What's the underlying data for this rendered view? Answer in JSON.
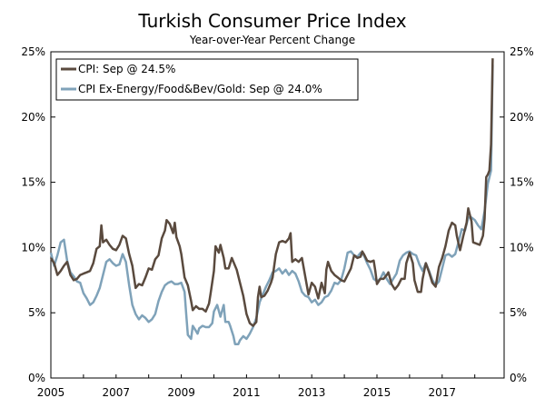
{
  "chart_data": {
    "type": "line",
    "title": "Turkish Consumer Price Index",
    "subtitle": "Year-over-Year Percent Change",
    "xlabel": "",
    "ylabel": "",
    "xlim": [
      2005.0,
      2018.9
    ],
    "ylim": [
      0,
      25
    ],
    "y_ticks": [
      "0%",
      "5%",
      "10%",
      "15%",
      "20%",
      "25%"
    ],
    "x_ticks": [
      "2005",
      "2007",
      "2009",
      "2011",
      "2013",
      "2015",
      "2017"
    ],
    "legend_position": "top-left",
    "series": [
      {
        "name": "CPI: Sep @ 24.5%",
        "color": "#5a4a3e",
        "points": [
          [
            2005.0,
            9.2
          ],
          [
            2005.1,
            8.8
          ],
          [
            2005.2,
            7.9
          ],
          [
            2005.3,
            8.2
          ],
          [
            2005.4,
            8.6
          ],
          [
            2005.5,
            8.9
          ],
          [
            2005.6,
            7.9
          ],
          [
            2005.7,
            7.5
          ],
          [
            2005.8,
            7.6
          ],
          [
            2005.9,
            7.9
          ],
          [
            2006.0,
            8.0
          ],
          [
            2006.1,
            8.1
          ],
          [
            2006.2,
            8.2
          ],
          [
            2006.3,
            8.8
          ],
          [
            2006.4,
            9.9
          ],
          [
            2006.5,
            10.1
          ],
          [
            2006.55,
            11.7
          ],
          [
            2006.6,
            10.4
          ],
          [
            2006.7,
            10.6
          ],
          [
            2006.8,
            10.2
          ],
          [
            2006.9,
            9.9
          ],
          [
            2007.0,
            9.8
          ],
          [
            2007.1,
            10.2
          ],
          [
            2007.2,
            10.9
          ],
          [
            2007.3,
            10.7
          ],
          [
            2007.4,
            9.5
          ],
          [
            2007.5,
            8.6
          ],
          [
            2007.6,
            6.9
          ],
          [
            2007.7,
            7.2
          ],
          [
            2007.8,
            7.1
          ],
          [
            2007.9,
            7.7
          ],
          [
            2008.0,
            8.4
          ],
          [
            2008.1,
            8.3
          ],
          [
            2008.2,
            9.1
          ],
          [
            2008.3,
            9.4
          ],
          [
            2008.4,
            10.7
          ],
          [
            2008.5,
            11.3
          ],
          [
            2008.55,
            12.1
          ],
          [
            2008.65,
            11.8
          ],
          [
            2008.75,
            11.1
          ],
          [
            2008.8,
            11.9
          ],
          [
            2008.85,
            10.8
          ],
          [
            2008.95,
            10.1
          ],
          [
            2009.0,
            9.5
          ],
          [
            2009.1,
            7.7
          ],
          [
            2009.2,
            7.1
          ],
          [
            2009.3,
            5.9
          ],
          [
            2009.35,
            5.2
          ],
          [
            2009.45,
            5.5
          ],
          [
            2009.55,
            5.3
          ],
          [
            2009.65,
            5.3
          ],
          [
            2009.75,
            5.1
          ],
          [
            2009.85,
            5.7
          ],
          [
            2009.9,
            6.5
          ],
          [
            2010.0,
            8.2
          ],
          [
            2010.05,
            10.1
          ],
          [
            2010.15,
            9.6
          ],
          [
            2010.2,
            10.2
          ],
          [
            2010.3,
            9.2
          ],
          [
            2010.35,
            8.4
          ],
          [
            2010.45,
            8.4
          ],
          [
            2010.55,
            9.2
          ],
          [
            2010.6,
            8.9
          ],
          [
            2010.7,
            8.3
          ],
          [
            2010.8,
            7.3
          ],
          [
            2010.9,
            6.3
          ],
          [
            2011.0,
            4.9
          ],
          [
            2011.1,
            4.2
          ],
          [
            2011.2,
            4.0
          ],
          [
            2011.3,
            4.3
          ],
          [
            2011.35,
            6.2
          ],
          [
            2011.4,
            7.0
          ],
          [
            2011.45,
            6.2
          ],
          [
            2011.55,
            6.3
          ],
          [
            2011.65,
            6.7
          ],
          [
            2011.75,
            7.3
          ],
          [
            2011.8,
            7.7
          ],
          [
            2011.9,
            9.5
          ],
          [
            2012.0,
            10.4
          ],
          [
            2012.1,
            10.5
          ],
          [
            2012.2,
            10.4
          ],
          [
            2012.3,
            10.7
          ],
          [
            2012.35,
            11.1
          ],
          [
            2012.4,
            8.9
          ],
          [
            2012.5,
            9.1
          ],
          [
            2012.6,
            8.9
          ],
          [
            2012.7,
            9.2
          ],
          [
            2012.8,
            7.8
          ],
          [
            2012.9,
            6.4
          ],
          [
            2013.0,
            7.3
          ],
          [
            2013.1,
            7.0
          ],
          [
            2013.2,
            6.1
          ],
          [
            2013.3,
            7.3
          ],
          [
            2013.4,
            6.5
          ],
          [
            2013.45,
            8.3
          ],
          [
            2013.5,
            8.9
          ],
          [
            2013.6,
            8.2
          ],
          [
            2013.7,
            7.9
          ],
          [
            2013.8,
            7.7
          ],
          [
            2013.9,
            7.5
          ],
          [
            2014.0,
            7.4
          ],
          [
            2014.1,
            7.9
          ],
          [
            2014.2,
            8.4
          ],
          [
            2014.3,
            9.4
          ],
          [
            2014.4,
            9.2
          ],
          [
            2014.5,
            9.3
          ],
          [
            2014.55,
            9.7
          ],
          [
            2014.6,
            9.5
          ],
          [
            2014.7,
            9.0
          ],
          [
            2014.8,
            8.9
          ],
          [
            2014.9,
            9.0
          ],
          [
            2014.95,
            8.2
          ],
          [
            2015.0,
            7.2
          ],
          [
            2015.1,
            7.6
          ],
          [
            2015.2,
            7.6
          ],
          [
            2015.3,
            7.9
          ],
          [
            2015.35,
            8.1
          ],
          [
            2015.45,
            7.2
          ],
          [
            2015.55,
            6.8
          ],
          [
            2015.65,
            7.1
          ],
          [
            2015.75,
            7.6
          ],
          [
            2015.85,
            7.6
          ],
          [
            2015.9,
            8.8
          ],
          [
            2016.0,
            9.6
          ],
          [
            2016.1,
            8.8
          ],
          [
            2016.15,
            7.5
          ],
          [
            2016.25,
            6.6
          ],
          [
            2016.35,
            6.6
          ],
          [
            2016.4,
            7.6
          ],
          [
            2016.5,
            8.8
          ],
          [
            2016.6,
            8.1
          ],
          [
            2016.7,
            7.3
          ],
          [
            2016.8,
            7.0
          ],
          [
            2016.9,
            8.5
          ],
          [
            2017.0,
            9.2
          ],
          [
            2017.1,
            10.1
          ],
          [
            2017.2,
            11.3
          ],
          [
            2017.3,
            11.9
          ],
          [
            2017.4,
            11.7
          ],
          [
            2017.45,
            10.9
          ],
          [
            2017.55,
            9.8
          ],
          [
            2017.65,
            10.9
          ],
          [
            2017.75,
            11.9
          ],
          [
            2017.8,
            13.0
          ],
          [
            2017.9,
            12.0
          ],
          [
            2017.95,
            10.4
          ],
          [
            2018.05,
            10.3
          ],
          [
            2018.15,
            10.2
          ],
          [
            2018.25,
            10.9
          ],
          [
            2018.3,
            12.2
          ],
          [
            2018.35,
            15.4
          ],
          [
            2018.4,
            15.6
          ],
          [
            2018.45,
            15.9
          ],
          [
            2018.5,
            17.9
          ],
          [
            2018.55,
            24.5
          ]
        ]
      },
      {
        "name": "CPI Ex-Energy/Food&Bev/Gold: Sep @ 24.0%",
        "color": "#7fa2b9",
        "points": [
          [
            2005.0,
            9.6
          ],
          [
            2005.1,
            8.6
          ],
          [
            2005.2,
            9.4
          ],
          [
            2005.3,
            10.4
          ],
          [
            2005.4,
            10.6
          ],
          [
            2005.5,
            9.0
          ],
          [
            2005.6,
            8.1
          ],
          [
            2005.7,
            7.8
          ],
          [
            2005.8,
            7.4
          ],
          [
            2005.9,
            7.3
          ],
          [
            2006.0,
            6.5
          ],
          [
            2006.1,
            6.1
          ],
          [
            2006.2,
            5.6
          ],
          [
            2006.3,
            5.8
          ],
          [
            2006.4,
            6.3
          ],
          [
            2006.5,
            6.9
          ],
          [
            2006.6,
            7.9
          ],
          [
            2006.7,
            8.9
          ],
          [
            2006.8,
            9.1
          ],
          [
            2006.9,
            8.8
          ],
          [
            2007.0,
            8.6
          ],
          [
            2007.1,
            8.7
          ],
          [
            2007.2,
            9.5
          ],
          [
            2007.3,
            8.9
          ],
          [
            2007.4,
            7.1
          ],
          [
            2007.5,
            5.6
          ],
          [
            2007.6,
            4.9
          ],
          [
            2007.7,
            4.5
          ],
          [
            2007.8,
            4.8
          ],
          [
            2007.9,
            4.6
          ],
          [
            2008.0,
            4.3
          ],
          [
            2008.1,
            4.5
          ],
          [
            2008.2,
            4.9
          ],
          [
            2008.3,
            5.9
          ],
          [
            2008.4,
            6.6
          ],
          [
            2008.5,
            7.1
          ],
          [
            2008.6,
            7.3
          ],
          [
            2008.7,
            7.4
          ],
          [
            2008.8,
            7.2
          ],
          [
            2008.9,
            7.2
          ],
          [
            2009.0,
            7.3
          ],
          [
            2009.1,
            6.6
          ],
          [
            2009.15,
            4.9
          ],
          [
            2009.2,
            3.3
          ],
          [
            2009.3,
            3.0
          ],
          [
            2009.35,
            4.0
          ],
          [
            2009.45,
            3.6
          ],
          [
            2009.5,
            3.4
          ],
          [
            2009.55,
            3.8
          ],
          [
            2009.65,
            4.0
          ],
          [
            2009.75,
            3.9
          ],
          [
            2009.85,
            3.9
          ],
          [
            2009.95,
            4.2
          ],
          [
            2010.0,
            5.1
          ],
          [
            2010.1,
            5.6
          ],
          [
            2010.2,
            4.7
          ],
          [
            2010.3,
            5.6
          ],
          [
            2010.35,
            4.3
          ],
          [
            2010.45,
            4.3
          ],
          [
            2010.5,
            4.0
          ],
          [
            2010.6,
            3.2
          ],
          [
            2010.65,
            2.6
          ],
          [
            2010.75,
            2.6
          ],
          [
            2010.8,
            2.9
          ],
          [
            2010.9,
            3.2
          ],
          [
            2011.0,
            3.0
          ],
          [
            2011.1,
            3.4
          ],
          [
            2011.2,
            3.9
          ],
          [
            2011.3,
            4.6
          ],
          [
            2011.4,
            5.8
          ],
          [
            2011.5,
            6.4
          ],
          [
            2011.6,
            7.0
          ],
          [
            2011.7,
            7.5
          ],
          [
            2011.8,
            8.1
          ],
          [
            2011.9,
            8.2
          ],
          [
            2012.0,
            8.4
          ],
          [
            2012.1,
            8.0
          ],
          [
            2012.2,
            8.3
          ],
          [
            2012.3,
            7.9
          ],
          [
            2012.4,
            8.2
          ],
          [
            2012.5,
            8.0
          ],
          [
            2012.6,
            7.4
          ],
          [
            2012.7,
            6.6
          ],
          [
            2012.8,
            6.3
          ],
          [
            2012.9,
            6.2
          ],
          [
            2013.0,
            5.8
          ],
          [
            2013.1,
            6.0
          ],
          [
            2013.2,
            5.6
          ],
          [
            2013.3,
            5.8
          ],
          [
            2013.4,
            6.2
          ],
          [
            2013.5,
            6.3
          ],
          [
            2013.6,
            6.7
          ],
          [
            2013.7,
            7.3
          ],
          [
            2013.8,
            7.2
          ],
          [
            2013.9,
            7.5
          ],
          [
            2014.0,
            8.4
          ],
          [
            2014.1,
            9.6
          ],
          [
            2014.2,
            9.7
          ],
          [
            2014.3,
            9.4
          ],
          [
            2014.4,
            9.3
          ],
          [
            2014.5,
            9.6
          ],
          [
            2014.6,
            9.4
          ],
          [
            2014.7,
            8.8
          ],
          [
            2014.8,
            8.3
          ],
          [
            2014.9,
            7.6
          ],
          [
            2015.0,
            7.4
          ],
          [
            2015.1,
            7.6
          ],
          [
            2015.2,
            8.1
          ],
          [
            2015.3,
            7.6
          ],
          [
            2015.4,
            7.2
          ],
          [
            2015.5,
            7.6
          ],
          [
            2015.6,
            8.0
          ],
          [
            2015.7,
            9.0
          ],
          [
            2015.8,
            9.4
          ],
          [
            2015.9,
            9.6
          ],
          [
            2016.0,
            9.7
          ],
          [
            2016.1,
            9.5
          ],
          [
            2016.2,
            9.4
          ],
          [
            2016.3,
            8.7
          ],
          [
            2016.4,
            8.2
          ],
          [
            2016.5,
            8.8
          ],
          [
            2016.6,
            8.2
          ],
          [
            2016.7,
            7.5
          ],
          [
            2016.8,
            7.1
          ],
          [
            2016.9,
            7.4
          ],
          [
            2017.0,
            8.4
          ],
          [
            2017.1,
            9.4
          ],
          [
            2017.2,
            9.5
          ],
          [
            2017.3,
            9.3
          ],
          [
            2017.4,
            9.5
          ],
          [
            2017.5,
            10.4
          ],
          [
            2017.6,
            11.4
          ],
          [
            2017.7,
            11.3
          ],
          [
            2017.8,
            12.3
          ],
          [
            2017.9,
            12.3
          ],
          [
            2018.0,
            12.1
          ],
          [
            2018.1,
            11.7
          ],
          [
            2018.2,
            11.4
          ],
          [
            2018.3,
            12.8
          ],
          [
            2018.4,
            14.9
          ],
          [
            2018.5,
            15.9
          ],
          [
            2018.55,
            24.0
          ]
        ]
      }
    ]
  }
}
